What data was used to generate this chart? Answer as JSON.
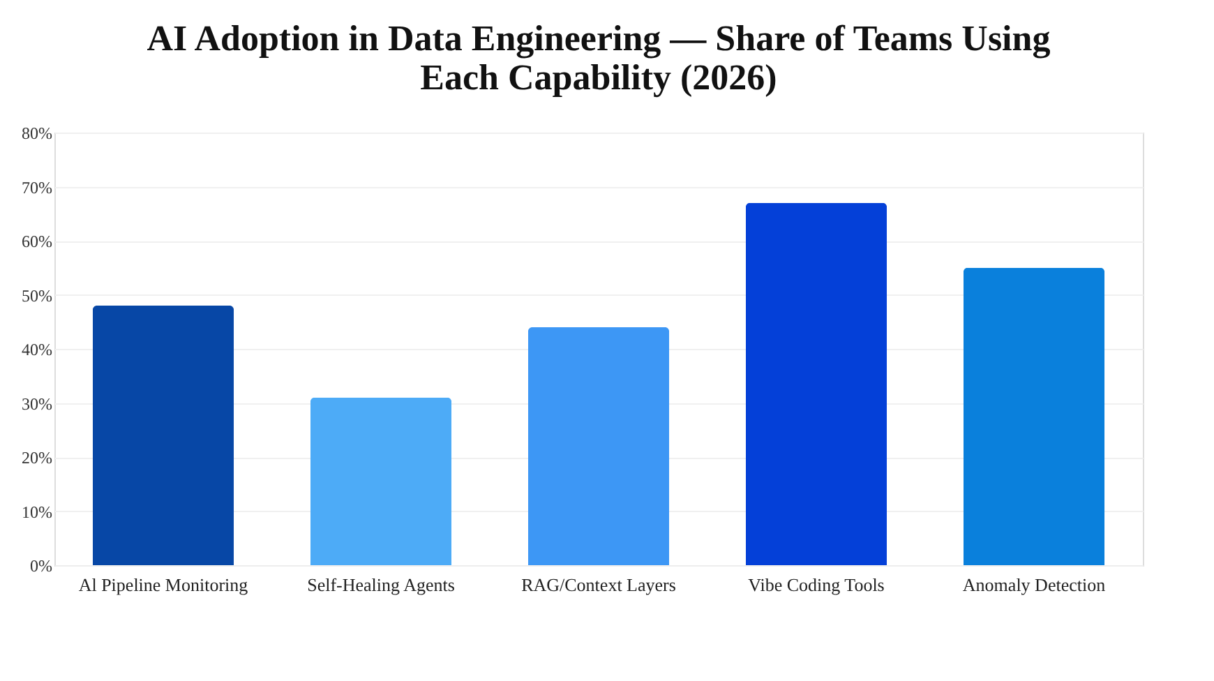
{
  "chart_data": {
    "type": "bar",
    "title": "AI Adoption in Data Engineering — Share of Teams Using Each Capability (2026)",
    "categories": [
      "Al Pipeline Monitoring",
      "Self-Healing Agents",
      "RAG/Context Layers",
      "Vibe Coding Tools",
      "Anomaly Detection"
    ],
    "values": [
      48,
      31,
      44,
      67,
      55
    ],
    "colors": [
      "#0747a6",
      "#4dabf7",
      "#3d97f5",
      "#0440d8",
      "#0a80dc"
    ],
    "ylim": [
      0,
      80
    ],
    "yticks": [
      {
        "value": 0,
        "label": "0%"
      },
      {
        "value": 10,
        "label": "10%"
      },
      {
        "value": 20,
        "label": "20%"
      },
      {
        "value": 30,
        "label": "30%"
      },
      {
        "value": 40,
        "label": "40%"
      },
      {
        "value": 50,
        "label": "50%"
      },
      {
        "value": 60,
        "label": "60%"
      },
      {
        "value": 70,
        "label": "70%"
      },
      {
        "value": 80,
        "label": "80%"
      }
    ],
    "grid": "y"
  }
}
